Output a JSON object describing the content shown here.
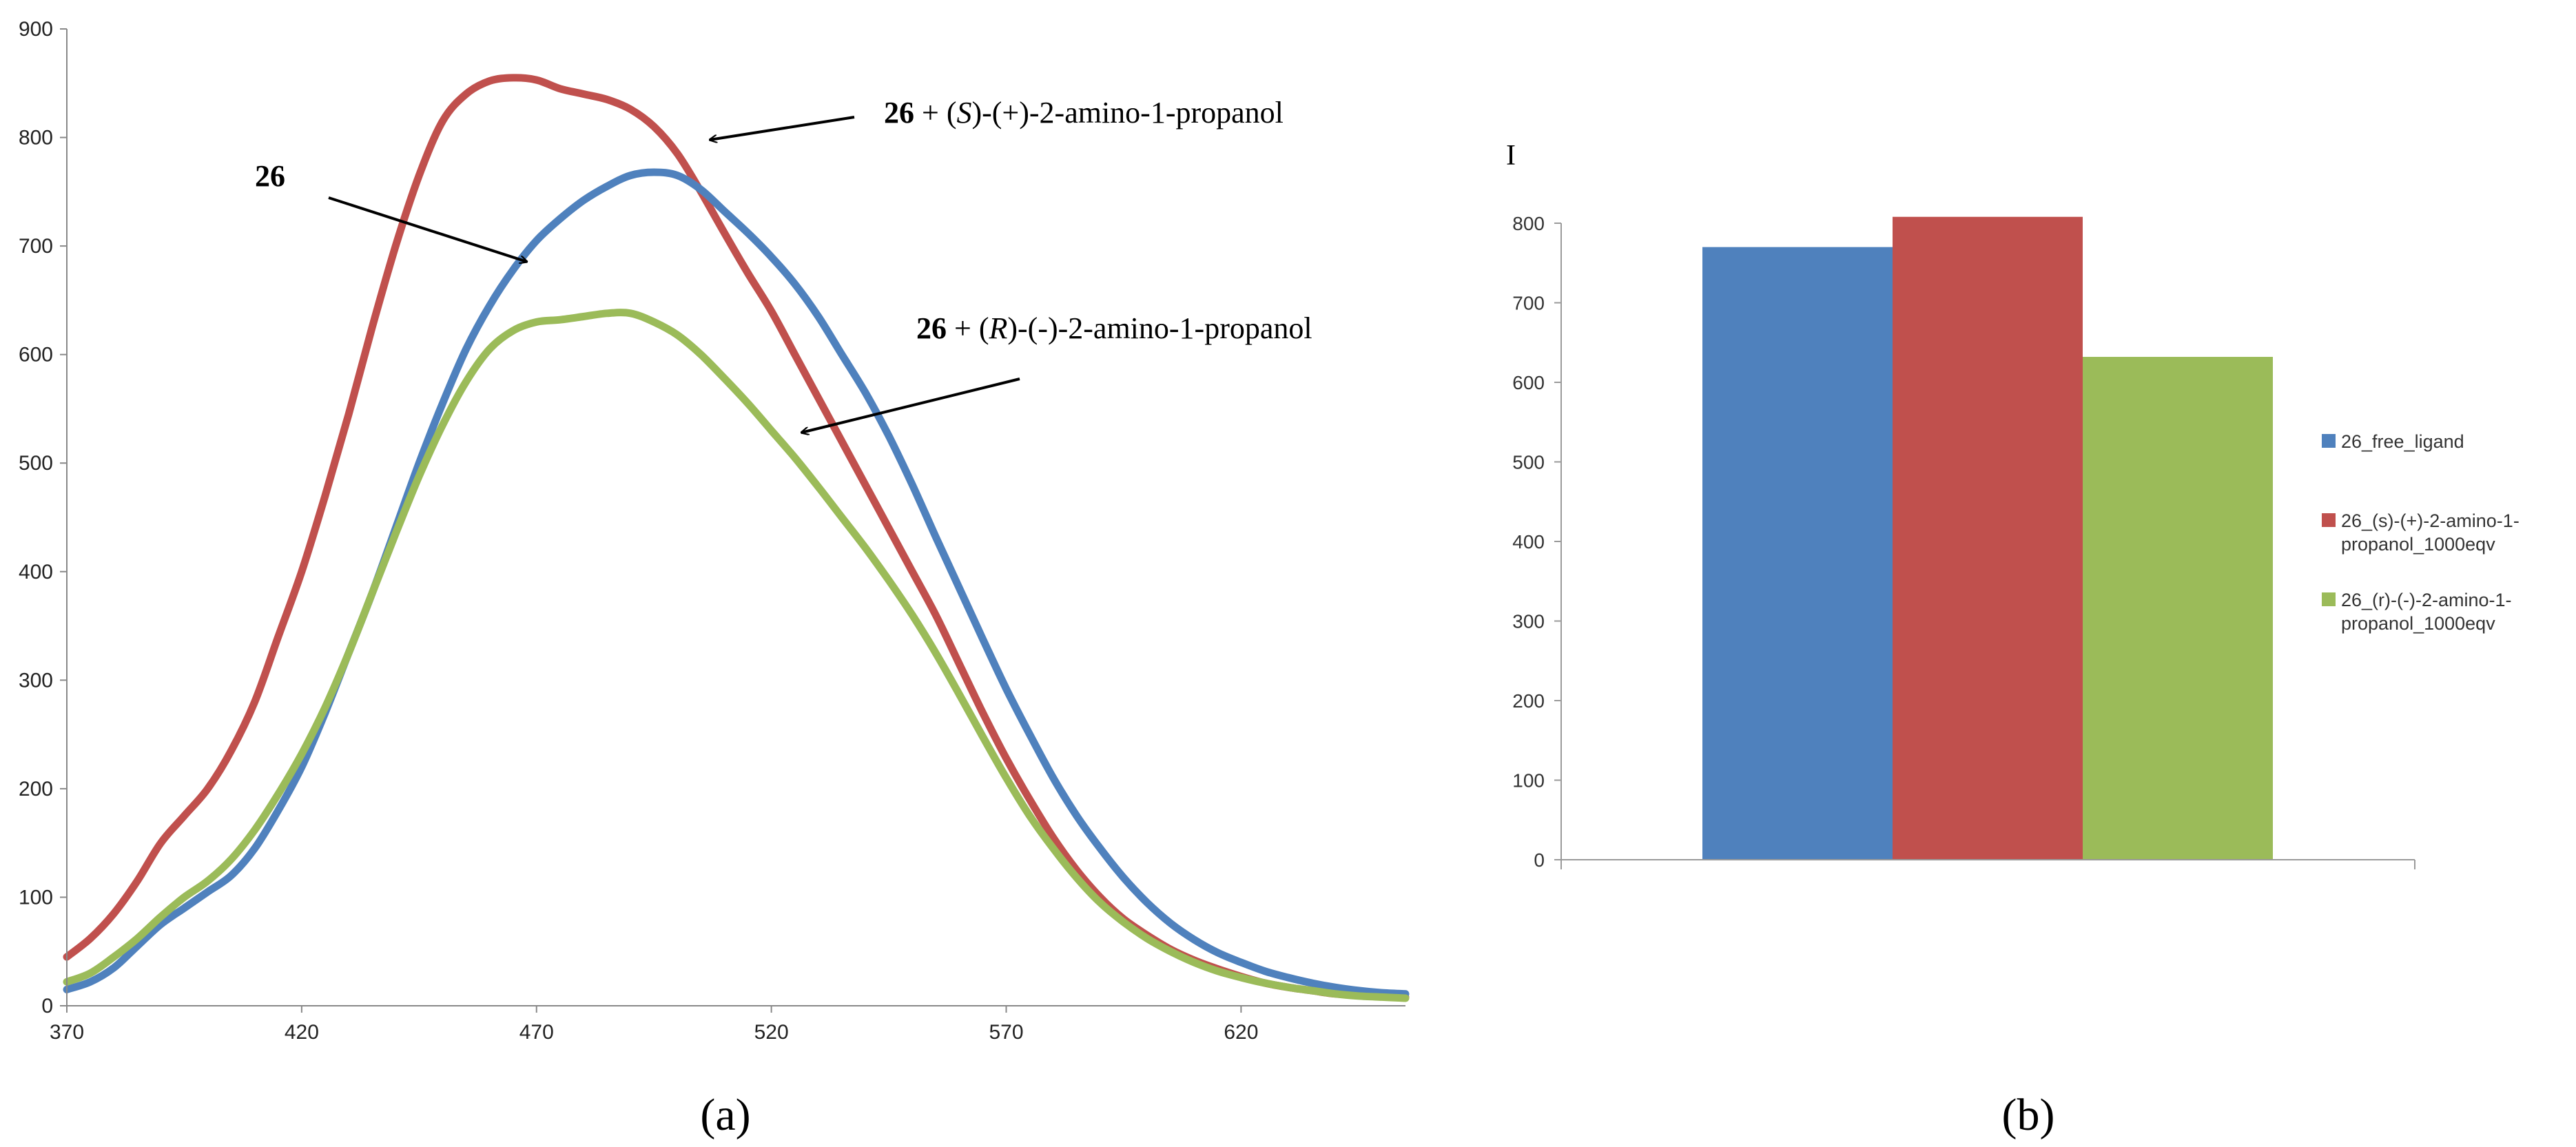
{
  "chart_data": [
    {
      "type": "line",
      "panel_label": "a",
      "x_range": [
        370,
        655
      ],
      "ylim": [
        0,
        900
      ],
      "x_ticks": [
        370,
        420,
        470,
        520,
        570,
        620
      ],
      "y_ticks": [
        0,
        100,
        200,
        300,
        400,
        500,
        600,
        700,
        800,
        900
      ],
      "grid": false,
      "series": [
        {
          "name": "26",
          "color": "#4F81BD",
          "x": [
            370,
            375,
            380,
            385,
            390,
            395,
            400,
            405,
            410,
            415,
            420,
            425,
            430,
            435,
            440,
            445,
            450,
            455,
            460,
            465,
            470,
            475,
            480,
            485,
            490,
            495,
            500,
            505,
            510,
            515,
            520,
            525,
            530,
            535,
            540,
            545,
            550,
            555,
            560,
            565,
            570,
            575,
            580,
            585,
            590,
            595,
            600,
            605,
            610,
            615,
            620,
            625,
            630,
            635,
            640,
            645,
            650,
            655
          ],
          "y": [
            15,
            22,
            35,
            55,
            75,
            90,
            105,
            120,
            145,
            180,
            220,
            270,
            325,
            380,
            440,
            500,
            555,
            605,
            645,
            678,
            705,
            725,
            742,
            755,
            765,
            768,
            765,
            752,
            732,
            712,
            690,
            665,
            635,
            600,
            565,
            525,
            480,
            432,
            385,
            338,
            292,
            250,
            210,
            175,
            145,
            118,
            95,
            76,
            61,
            49,
            40,
            32,
            26,
            21,
            17,
            14,
            12,
            11
          ]
        },
        {
          "name": "26 + (S)-(+)-2-amino-1-propanol",
          "color": "#C0504D",
          "x": [
            370,
            375,
            380,
            385,
            390,
            395,
            400,
            405,
            410,
            415,
            420,
            425,
            430,
            435,
            440,
            445,
            450,
            455,
            460,
            465,
            470,
            475,
            480,
            485,
            490,
            495,
            500,
            505,
            510,
            515,
            520,
            525,
            530,
            535,
            540,
            545,
            550,
            555,
            560,
            565,
            570,
            575,
            580,
            585,
            590,
            595,
            600,
            605,
            610,
            615,
            620,
            625,
            630,
            635,
            640,
            645,
            650,
            655
          ],
          "y": [
            45,
            62,
            85,
            115,
            150,
            175,
            200,
            235,
            280,
            340,
            400,
            470,
            545,
            625,
            700,
            765,
            815,
            840,
            852,
            855,
            853,
            845,
            840,
            835,
            826,
            810,
            785,
            750,
            712,
            675,
            640,
            600,
            560,
            520,
            480,
            440,
            400,
            360,
            315,
            270,
            228,
            190,
            155,
            125,
            100,
            80,
            65,
            52,
            42,
            34,
            27,
            21,
            17,
            14,
            11,
            10,
            9,
            8
          ]
        },
        {
          "name": "26 + (R)-(-)-2-amino-1-propanol",
          "color": "#9BBB59",
          "x": [
            370,
            375,
            380,
            385,
            390,
            395,
            400,
            405,
            410,
            415,
            420,
            425,
            430,
            435,
            440,
            445,
            450,
            455,
            460,
            465,
            470,
            475,
            480,
            485,
            490,
            495,
            500,
            505,
            510,
            515,
            520,
            525,
            530,
            535,
            540,
            545,
            550,
            555,
            560,
            565,
            570,
            575,
            580,
            585,
            590,
            595,
            600,
            605,
            610,
            615,
            620,
            625,
            630,
            635,
            640,
            645,
            650,
            655
          ],
          "y": [
            22,
            30,
            45,
            62,
            82,
            100,
            115,
            135,
            162,
            195,
            232,
            275,
            325,
            380,
            435,
            488,
            535,
            575,
            605,
            622,
            630,
            632,
            635,
            638,
            638,
            630,
            618,
            600,
            578,
            555,
            530,
            505,
            478,
            450,
            422,
            392,
            360,
            325,
            287,
            248,
            210,
            175,
            145,
            118,
            95,
            77,
            62,
            50,
            40,
            32,
            26,
            21,
            17,
            14,
            11,
            9,
            8,
            7
          ]
        }
      ],
      "annotations": [
        {
          "bold": "26",
          "pre": "",
          "italic": "",
          "post": ""
        },
        {
          "bold": "26",
          "pre": " + (",
          "italic": "S",
          "post": ")-(+)-2-amino-1-propanol"
        },
        {
          "bold": "26",
          "pre": " + (",
          "italic": "R",
          "post": ")-(-)-2-amino-1-propanol"
        }
      ]
    },
    {
      "type": "bar",
      "panel_label": "b",
      "ylabel": "I",
      "ylim": [
        0,
        800
      ],
      "y_ticks": [
        0,
        100,
        200,
        300,
        400,
        500,
        600,
        700,
        800
      ],
      "grid": false,
      "legend_position": "right",
      "series": [
        {
          "name": "26_free_ligand",
          "legend_lines": [
            "26_free_ligand"
          ],
          "value": 770,
          "color": "#4F81BD"
        },
        {
          "name": "26_(s)-(+)-2-amino-1-propanol_1000eqv",
          "legend_lines": [
            "26_(s)-(+)-2-amino-1-",
            "propanol_1000eqv"
          ],
          "value": 808,
          "color": "#C0504D"
        },
        {
          "name": "26_(r)-(-)-2-amino-1-propanol_1000eqv",
          "legend_lines": [
            "26_(r)-(-)-2-amino-1-",
            "propanol_1000eqv"
          ],
          "value": 632,
          "color": "#9BBB59"
        }
      ]
    }
  ]
}
